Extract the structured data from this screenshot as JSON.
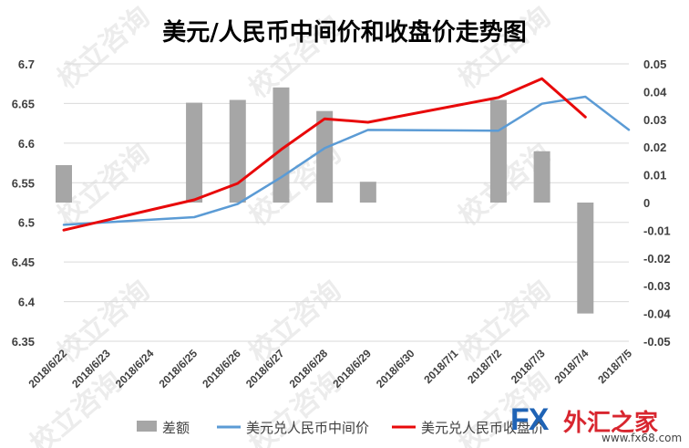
{
  "chart_data": {
    "type": "bar+line",
    "title": "美元/人民币中间价和收盘价走势图",
    "categories": [
      "2018/6/22",
      "2018/6/23",
      "2018/6/24",
      "2018/6/25",
      "2018/6/26",
      "2018/6/27",
      "2018/6/28",
      "2018/6/29",
      "2018/6/30",
      "2018/7/1",
      "2018/7/2",
      "2018/7/3",
      "2018/7/4",
      "2018/7/5"
    ],
    "left_axis": {
      "ylim": [
        6.35,
        6.7
      ],
      "ticks": [
        "6.35",
        "6.4",
        "6.45",
        "6.5",
        "6.55",
        "6.6",
        "6.65",
        "6.7"
      ]
    },
    "right_axis": {
      "ylim": [
        -0.05,
        0.05
      ],
      "ticks": [
        "-0.05",
        "-0.04",
        "-0.03",
        "-0.02",
        "-0.01",
        "0",
        "0.01",
        "0.02",
        "0.03",
        "0.04",
        "0.05"
      ]
    },
    "series": [
      {
        "name": "差额",
        "type": "bar",
        "axis": "right",
        "color": "#a6a6a6",
        "values": [
          0.0135,
          null,
          null,
          0.036,
          0.037,
          0.0415,
          0.033,
          0.0075,
          null,
          null,
          0.037,
          0.0185,
          -0.04,
          null
        ]
      },
      {
        "name": "美元兑人民币中间价",
        "type": "line",
        "axis": "left",
        "color": "#5b9bd5",
        "values": [
          6.4969,
          null,
          null,
          6.5066,
          6.5233,
          6.5569,
          6.5936,
          6.6166,
          null,
          null,
          6.6157,
          6.6497,
          6.6585,
          6.6168
        ]
      },
      {
        "name": "美元兑人民币收盘价",
        "type": "line",
        "axis": "left",
        "color": "#e8090a",
        "values": [
          6.4902,
          null,
          null,
          6.5285,
          6.5492,
          6.5919,
          6.6307,
          6.6263,
          null,
          null,
          6.6575,
          6.6813,
          6.633,
          null
        ]
      }
    ],
    "legend": {
      "placement": "bottom"
    },
    "grid": true
  },
  "watermark": "校立咨询",
  "brand": {
    "fx": "FX",
    "cn": "外汇之家",
    "url": "www.fx68.com",
    "color_blue": "#1f63b5",
    "color_red": "#d8262f"
  }
}
